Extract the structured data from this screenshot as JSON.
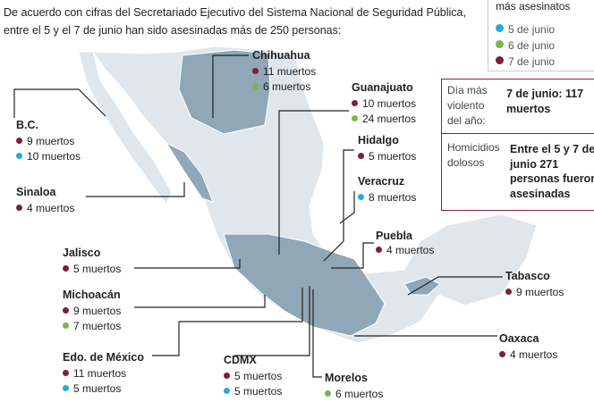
{
  "intro": [
    "De acuerdo con cifras del Secretariado Ejecutivo del Sistema Nacional de Seguridad Pública,",
    "entre el 5 y el 7 de junio han sido asesinadas más de 250 personas:"
  ],
  "legend": {
    "title": "más asesinatos",
    "items": [
      {
        "label": "5 de junio",
        "color": "#2aa8e0"
      },
      {
        "label": "6 de junio",
        "color": "#7ab648"
      },
      {
        "label": "7 de junio",
        "color": "#7b1f3a"
      }
    ]
  },
  "stats": [
    {
      "label": "Día más violento del año:",
      "value": "7 de junio: 117 muertos"
    },
    {
      "label": "Homicidios dolosos",
      "value": "Entre el 5 y 7 de junio 271 personas fueron asesinadas"
    }
  ],
  "states": [
    {
      "name": "Chihuahua",
      "entries": [
        {
          "text": "11 muertos",
          "color": "#7b1f3a"
        },
        {
          "text": "6 muertos",
          "color": "#7ab648"
        }
      ]
    },
    {
      "name": "Guanajuato",
      "entries": [
        {
          "text": "10 muertos",
          "color": "#7b1f3a"
        },
        {
          "text": "24 muertos",
          "color": "#7ab648"
        }
      ]
    },
    {
      "name": "Hidalgo",
      "entries": [
        {
          "text": "5 muertos",
          "color": "#7b1f3a"
        }
      ]
    },
    {
      "name": "Veracruz",
      "entries": [
        {
          "text": "8 muertos",
          "color": "#2aa8e0"
        }
      ]
    },
    {
      "name": "Puebla",
      "entries": [
        {
          "text": "4 muertos",
          "color": "#7b1f3a"
        }
      ]
    },
    {
      "name": "Tabasco",
      "entries": [
        {
          "text": "9 muertos",
          "color": "#7b1f3a"
        }
      ]
    },
    {
      "name": "Oaxaca",
      "entries": [
        {
          "text": "4 muertos",
          "color": "#7b1f3a"
        }
      ]
    },
    {
      "name": "B.C.",
      "entries": [
        {
          "text": "9 muertos",
          "color": "#7b1f3a"
        },
        {
          "text": "10 muertos",
          "color": "#2aa8e0"
        }
      ]
    },
    {
      "name": "Sinaloa",
      "entries": [
        {
          "text": "4 muertos",
          "color": "#7b1f3a"
        }
      ]
    },
    {
      "name": "Jalisco",
      "entries": [
        {
          "text": "5 muertos",
          "color": "#7b1f3a"
        }
      ]
    },
    {
      "name": "Michoacán",
      "entries": [
        {
          "text": "9 muertos",
          "color": "#7b1f3a"
        },
        {
          "text": "7 muertos",
          "color": "#7ab648"
        }
      ]
    },
    {
      "name": "Edo. de México",
      "entries": [
        {
          "text": "11 muertos",
          "color": "#7b1f3a"
        },
        {
          "text": "5 muertos",
          "color": "#2aa8e0"
        }
      ]
    },
    {
      "name": "CDMX",
      "entries": [
        {
          "text": "5 muertos",
          "color": "#7b1f3a"
        },
        {
          "text": "5 muertos",
          "color": "#2aa8e0"
        }
      ]
    },
    {
      "name": "Morelos",
      "entries": [
        {
          "text": "6 muertos",
          "color": "#7ab648"
        }
      ]
    }
  ]
}
